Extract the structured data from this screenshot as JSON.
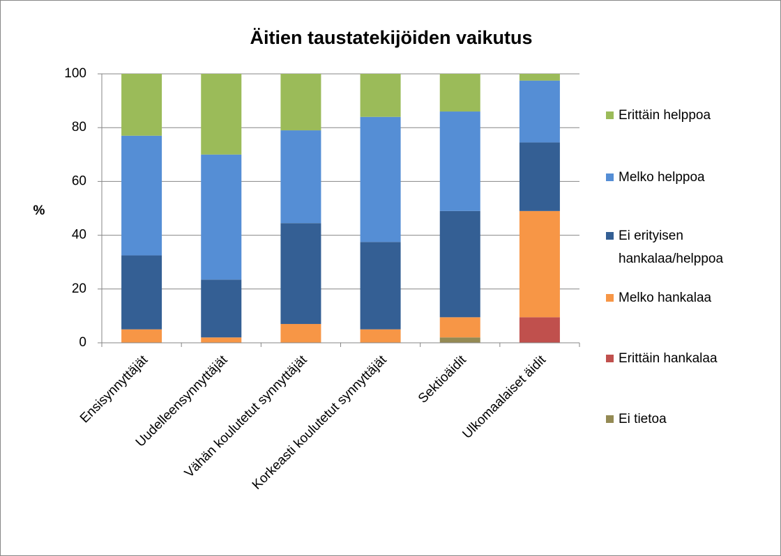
{
  "chart_data": {
    "type": "stacked_bar",
    "title": "Äitien taustatekijöiden vaikutus",
    "y_label": "%",
    "categories": [
      "Ensisynnyttäjät",
      "Uudelleensynnyttäjät",
      "Vähän koulutetut synnyttäjät",
      "Korkeasti koulutetut synnyttäjät",
      "Sektioäidit",
      "Ulkomaalaiset äidit"
    ],
    "series": [
      {
        "name": "Ei tietoa",
        "color": "#948a54",
        "values": [
          0,
          0,
          0,
          0,
          2,
          0
        ]
      },
      {
        "name": "Erittäin hankalaa",
        "color": "#c0504d",
        "values": [
          0,
          0,
          0,
          0,
          0,
          9.5
        ]
      },
      {
        "name": "Melko hankalaa",
        "color": "#f79646",
        "values": [
          5,
          2,
          7,
          5,
          7.5,
          39.5
        ]
      },
      {
        "name": "Ei erityisen hankalaa/helppoa",
        "color": "#345f94",
        "values": [
          27.5,
          21.5,
          37.5,
          32.5,
          39.5,
          25.5
        ]
      },
      {
        "name": "Melko helppoa",
        "color": "#558ed5",
        "values": [
          44.5,
          46.5,
          34.5,
          46.5,
          37,
          23
        ]
      },
      {
        "name": "Erittäin helppoa",
        "color": "#9bbb59",
        "values": [
          23,
          30,
          21,
          16,
          14,
          2.5
        ]
      }
    ],
    "ylim": [
      0,
      100
    ],
    "yticks": [
      0,
      20,
      40,
      60,
      80,
      100
    ],
    "grid": true,
    "legend": "right"
  }
}
